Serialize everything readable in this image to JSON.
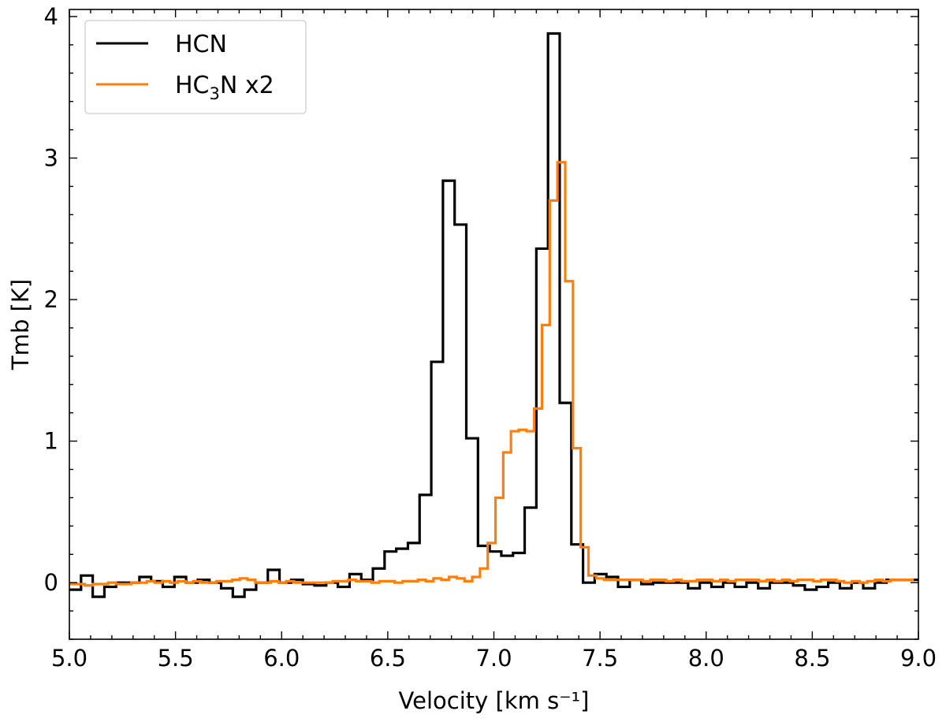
{
  "chart_data": {
    "type": "line",
    "step": true,
    "xlabel": "Velocity  [km s⁻¹]",
    "ylabel": "Tmb  [K]",
    "xlim": [
      5.0,
      9.0
    ],
    "ylim": [
      -0.4,
      4.05
    ],
    "xticks": [
      5.0,
      5.5,
      6.0,
      6.5,
      7.0,
      7.5,
      8.0,
      8.5,
      9.0
    ],
    "xtick_labels": [
      "5.0",
      "5.5",
      "6.0",
      "6.5",
      "7.0",
      "7.5",
      "8.0",
      "8.5",
      "9.0"
    ],
    "yticks": [
      0,
      1,
      2,
      3,
      4
    ],
    "ytick_labels": [
      "0",
      "1",
      "2",
      "3",
      "4"
    ],
    "grid": false,
    "legend_position": "top-left",
    "series": [
      {
        "name": "HCN",
        "legend_label": "HCN",
        "color": "#000000",
        "bin_width": 0.055,
        "x": [
          5.0,
          5.055,
          5.11,
          5.165,
          5.22,
          5.275,
          5.33,
          5.385,
          5.44,
          5.495,
          5.55,
          5.605,
          5.66,
          5.715,
          5.77,
          5.825,
          5.88,
          5.935,
          5.99,
          6.045,
          6.1,
          6.155,
          6.21,
          6.265,
          6.32,
          6.375,
          6.43,
          6.485,
          6.54,
          6.595,
          6.65,
          6.705,
          6.76,
          6.815,
          6.87,
          6.925,
          6.98,
          7.035,
          7.09,
          7.145,
          7.2,
          7.255,
          7.31,
          7.365,
          7.42,
          7.475,
          7.53,
          7.585,
          7.64,
          7.695,
          7.75,
          7.805,
          7.86,
          7.915,
          7.97,
          8.025,
          8.08,
          8.135,
          8.19,
          8.245,
          8.3,
          8.355,
          8.41,
          8.465,
          8.52,
          8.575,
          8.63,
          8.685,
          8.74,
          8.795,
          8.85,
          8.905,
          8.96
        ],
        "values": [
          -0.05,
          0.05,
          -0.1,
          -0.03,
          0.0,
          0.0,
          0.04,
          0.01,
          -0.03,
          0.04,
          0.0,
          0.02,
          0.0,
          -0.04,
          -0.1,
          -0.05,
          0.0,
          0.09,
          0.0,
          0.02,
          -0.01,
          -0.02,
          0.0,
          -0.03,
          0.06,
          0.02,
          0.1,
          0.22,
          0.24,
          0.28,
          0.62,
          1.56,
          2.84,
          2.53,
          1.02,
          0.26,
          0.22,
          0.19,
          0.21,
          0.53,
          2.36,
          3.88,
          1.27,
          0.27,
          0.0,
          0.06,
          0.04,
          -0.03,
          0.02,
          -0.01,
          0.0,
          0.0,
          0.0,
          -0.04,
          0.0,
          -0.03,
          0.0,
          -0.03,
          0.0,
          -0.04,
          0.0,
          0.0,
          -0.02,
          -0.05,
          -0.03,
          0.0,
          -0.04,
          0.0,
          -0.04,
          0.0,
          0.02,
          0.02,
          0.02
        ]
      },
      {
        "name": "HC3N x2",
        "legend_label": "HC",
        "legend_subscript": "3",
        "legend_suffix": "N x2",
        "color": "#ff7f0e",
        "bin_width": 0.0365,
        "x": [
          5.0,
          5.0365,
          5.073,
          5.1095,
          5.146,
          5.1825,
          5.219,
          5.2555,
          5.292,
          5.3285,
          5.365,
          5.4015,
          5.438,
          5.4745,
          5.511,
          5.5475,
          5.584,
          5.6205,
          5.657,
          5.6935,
          5.73,
          5.7665,
          5.803,
          5.8395,
          5.876,
          5.9125,
          5.949,
          5.9855,
          6.022,
          6.0585,
          6.095,
          6.1315,
          6.168,
          6.2045,
          6.241,
          6.2775,
          6.314,
          6.3505,
          6.387,
          6.4235,
          6.46,
          6.4965,
          6.533,
          6.5695,
          6.606,
          6.6425,
          6.679,
          6.7155,
          6.752,
          6.7885,
          6.825,
          6.8615,
          6.898,
          6.9345,
          6.971,
          7.0075,
          7.044,
          7.0805,
          7.117,
          7.1535,
          7.19,
          7.2265,
          7.263,
          7.2995,
          7.336,
          7.3725,
          7.409,
          7.4455,
          7.482,
          7.5185,
          7.555,
          7.5915,
          7.628,
          7.6645,
          7.701,
          7.7375,
          7.774,
          7.8105,
          7.847,
          7.8835,
          7.92,
          7.9565,
          7.993,
          8.0295,
          8.066,
          8.1025,
          8.139,
          8.1755,
          8.212,
          8.2485,
          8.285,
          8.3215,
          8.358,
          8.3945,
          8.431,
          8.4675,
          8.504,
          8.5405,
          8.577,
          8.6135,
          8.65,
          8.6865,
          8.723,
          8.7595,
          8.796,
          8.8325,
          8.869,
          8.9055,
          8.942
        ],
        "values": [
          -0.01,
          -0.01,
          -0.02,
          -0.01,
          -0.01,
          0.0,
          -0.01,
          -0.01,
          0.0,
          0.0,
          0.01,
          0.0,
          0.01,
          0.0,
          0.01,
          0.0,
          0.01,
          0.0,
          0.0,
          0.01,
          0.01,
          0.02,
          0.03,
          0.02,
          0.0,
          0.0,
          0.01,
          0.0,
          0.01,
          0.0,
          0.0,
          0.0,
          0.0,
          0.0,
          0.01,
          0.01,
          0.02,
          0.01,
          0.01,
          0.0,
          0.01,
          0.01,
          0.0,
          0.01,
          0.01,
          0.02,
          0.01,
          0.03,
          0.02,
          0.04,
          0.03,
          0.01,
          0.04,
          0.1,
          0.28,
          0.6,
          0.92,
          1.07,
          1.08,
          1.07,
          1.23,
          1.82,
          2.7,
          2.97,
          2.13,
          0.95,
          0.25,
          0.05,
          0.03,
          0.02,
          0.02,
          0.02,
          0.02,
          0.02,
          0.01,
          0.02,
          0.02,
          0.01,
          0.02,
          0.01,
          0.01,
          0.02,
          0.02,
          0.01,
          0.02,
          0.01,
          0.02,
          0.02,
          0.02,
          0.01,
          0.02,
          0.01,
          0.02,
          0.01,
          0.02,
          0.02,
          0.01,
          0.02,
          0.02,
          0.01,
          0.0,
          0.01,
          0.0,
          0.01,
          0.02,
          0.01,
          0.02,
          0.02,
          0.02
        ]
      }
    ]
  }
}
